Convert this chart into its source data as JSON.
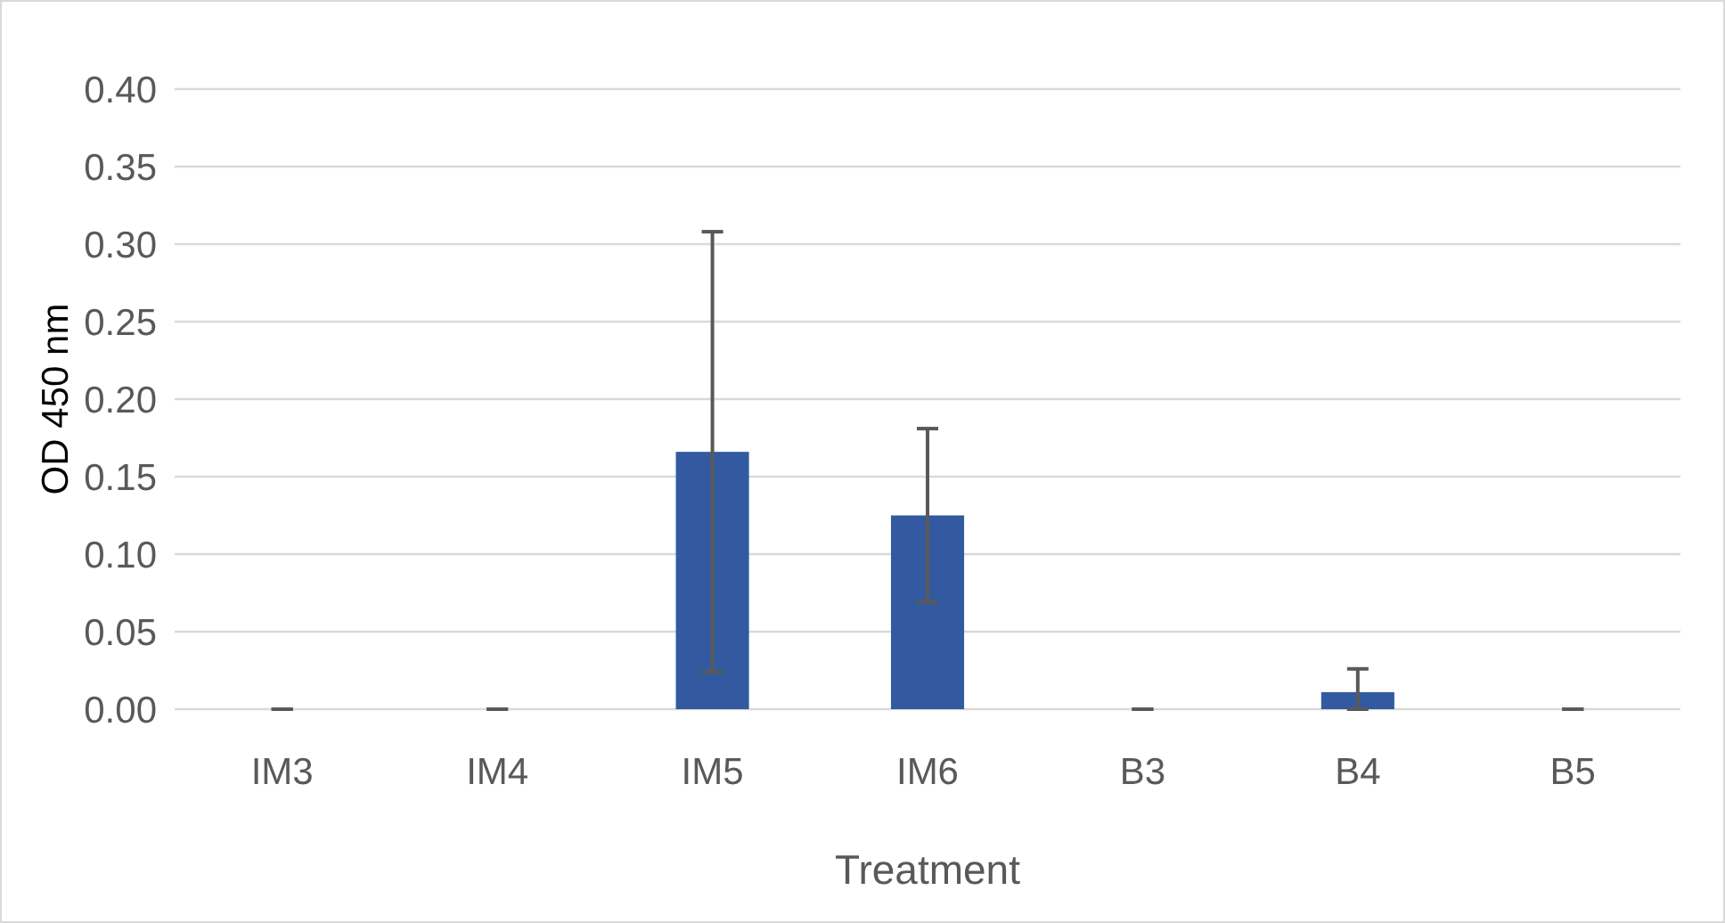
{
  "chart_data": {
    "type": "bar",
    "xlabel": "Treatment",
    "ylabel": "OD 450 nm",
    "categories": [
      "IM3",
      "IM4",
      "IM5",
      "IM6",
      "B3",
      "B4",
      "B5"
    ],
    "values": [
      0,
      0,
      0.166,
      0.125,
      0,
      0.011,
      0
    ],
    "errors": [
      0,
      0,
      0.142,
      0.056,
      0,
      [
        0,
        0.026
      ],
      0
    ],
    "color": "#335aa0",
    "ylim": [
      0,
      0.4
    ],
    "yticks": [
      {
        "value": 0,
        "label": "0.00"
      },
      {
        "value": 0.05,
        "label": "0.05"
      },
      {
        "value": 0.1,
        "label": "0.10"
      },
      {
        "value": 0.15,
        "label": "0.15"
      },
      {
        "value": 0.2,
        "label": "0.20"
      },
      {
        "value": 0.25,
        "label": "0.25"
      },
      {
        "value": 0.3,
        "label": "0.30"
      },
      {
        "value": 0.35,
        "label": "0.35"
      },
      {
        "value": 0.4,
        "label": "0.40"
      }
    ],
    "grid": "y"
  }
}
